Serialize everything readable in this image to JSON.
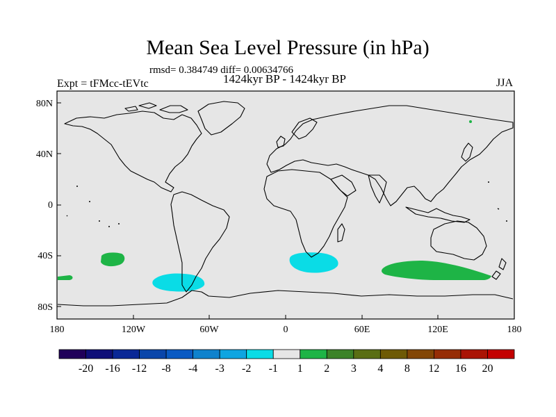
{
  "title": "Mean Sea Level Pressure (in hPa)",
  "stats_line": "rmsd= 0.384749 diff= 0.00634766",
  "period_line": "1424kyr BP - 1424kyr BP",
  "experiment_label": "Expt = tFMcc-tEVtc",
  "season_label": "JJA",
  "latitude_labels": [
    "80N",
    "40N",
    "0",
    "40S",
    "80S"
  ],
  "longitude_labels": [
    "180",
    "120W",
    "60W",
    "0",
    "60E",
    "120E",
    "180"
  ],
  "colorbar": {
    "colors": [
      "#20005a",
      "#0f0f78",
      "#0a2896",
      "#0a46aa",
      "#0a5ac3",
      "#0f82cd",
      "#0fa5e1",
      "#0adce6",
      "#e6e6e6",
      "#1eb446",
      "#3c8228",
      "#5a6e14",
      "#6e5a05",
      "#824605",
      "#962d05",
      "#aa1405",
      "#c30000"
    ],
    "labels": [
      "-20",
      "-16",
      "-12",
      "-8",
      "-4",
      "-3",
      "-2",
      "-1",
      "1",
      "2",
      "3",
      "4",
      "8",
      "12",
      "16",
      "20"
    ]
  },
  "anomalies": [
    {
      "name": "anomaly-south-pacific-green",
      "color": "#1eb446",
      "value_band": "1 to 2"
    },
    {
      "name": "anomaly-pacific-edge-green",
      "color": "#1eb446",
      "value_band": "1 to 2"
    },
    {
      "name": "anomaly-drake-passage-cyan",
      "color": "#0adce6",
      "value_band": "-2 to -1"
    },
    {
      "name": "anomaly-south-atlantic-cyan",
      "color": "#0adce6",
      "value_band": "-2 to -1"
    },
    {
      "name": "anomaly-indian-ocean-green",
      "color": "#1eb446",
      "value_band": "1 to 2"
    },
    {
      "name": "anomaly-arctic-dot-green",
      "color": "#1eb446",
      "value_band": "1 to 2"
    }
  ],
  "colors": {
    "background": "#e6e6e6",
    "coastline": "#000000",
    "frame": "#000000"
  }
}
